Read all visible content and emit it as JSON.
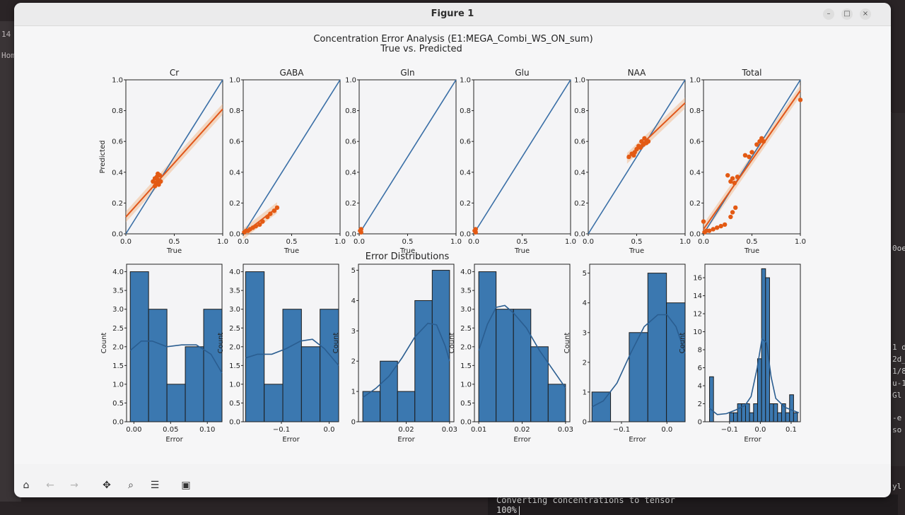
{
  "window": {
    "title": "Figure 1"
  },
  "background": {
    "left_terminal": [
      "14",
      "Hom"
    ],
    "right_terminal": [
      "0oe",
      "1 d",
      "2d_",
      "1/8",
      "u-1",
      "Gl",
      "-e",
      "so",
      "yl"
    ],
    "bottom_terminal": [
      "Converting concentrations to tensor",
      "100%|"
    ]
  },
  "toolbar": {
    "buttons": [
      {
        "name": "home-button",
        "icon": "home-icon",
        "glyph": "⌂",
        "enabled": true
      },
      {
        "name": "back-button",
        "icon": "arrow-left-icon",
        "glyph": "←",
        "enabled": false
      },
      {
        "name": "forward-button",
        "icon": "arrow-right-icon",
        "glyph": "→",
        "enabled": false
      },
      {
        "name": "pan-button",
        "icon": "move-icon",
        "glyph": "✥",
        "enabled": true
      },
      {
        "name": "zoom-button",
        "icon": "magnifier-icon",
        "glyph": "⌕",
        "enabled": true
      },
      {
        "name": "configure-subplots-button",
        "icon": "sliders-icon",
        "glyph": "☰",
        "enabled": true
      },
      {
        "name": "save-button",
        "icon": "floppy-disk-icon",
        "glyph": "▣",
        "enabled": true
      }
    ]
  },
  "colors": {
    "identity_line": "#3a6fa6",
    "scatter": "#e35a14",
    "fit": "#e0561a",
    "band": "#f2b27f",
    "bar": "#3b78b0",
    "bar_edge": "#1c1c1c",
    "kde": "#2a5d90"
  },
  "chart_data": {
    "suptitle": "Concentration Error Analysis (E1:MEGA_Combi_WS_ON_sum)",
    "subtitle": "True vs. Predicted",
    "hist_title": "Error Distributions",
    "scatter_panels": [
      {
        "title": "Cr",
        "type": "scatter",
        "xlabel": "True",
        "ylabel": "Predicted",
        "xlim": [
          0,
          1
        ],
        "ylim": [
          0,
          1
        ],
        "xticks": [
          "0.0",
          "0.5",
          "1.0"
        ],
        "yticks": [
          "0.0",
          "0.2",
          "0.4",
          "0.6",
          "0.8",
          "1.0"
        ],
        "points": [
          [
            0.28,
            0.34
          ],
          [
            0.3,
            0.36
          ],
          [
            0.31,
            0.33
          ],
          [
            0.32,
            0.37
          ],
          [
            0.33,
            0.35
          ],
          [
            0.34,
            0.32
          ],
          [
            0.35,
            0.38
          ],
          [
            0.36,
            0.34
          ],
          [
            0.3,
            0.31
          ],
          [
            0.33,
            0.39
          ]
        ],
        "fit": [
          [
            0,
            0.11
          ],
          [
            1,
            0.81
          ]
        ]
      },
      {
        "title": "GABA",
        "type": "scatter",
        "xlabel": "True",
        "ylabel": "",
        "xlim": [
          0,
          1
        ],
        "ylim": [
          0,
          1
        ],
        "xticks": [
          "0.0",
          "0.5",
          "1.0"
        ],
        "yticks": [
          "0.0",
          "0.2",
          "0.4",
          "0.6",
          "0.8",
          "1.0"
        ],
        "points": [
          [
            0.01,
            0.01
          ],
          [
            0.03,
            0.02
          ],
          [
            0.05,
            0.02
          ],
          [
            0.07,
            0.03
          ],
          [
            0.1,
            0.04
          ],
          [
            0.13,
            0.05
          ],
          [
            0.17,
            0.06
          ],
          [
            0.2,
            0.08
          ],
          [
            0.25,
            0.11
          ],
          [
            0.28,
            0.13
          ],
          [
            0.32,
            0.15
          ],
          [
            0.35,
            0.17
          ]
        ],
        "fit": [
          [
            0,
            0.0
          ],
          [
            0.35,
            0.17
          ]
        ]
      },
      {
        "title": "Gln",
        "type": "scatter",
        "xlabel": "True",
        "ylabel": "",
        "xlim": [
          0,
          1
        ],
        "ylim": [
          0,
          1
        ],
        "xticks": [
          "0.0",
          "0.5",
          "1.0"
        ],
        "yticks": [
          "0.0",
          "0.2",
          "0.4",
          "0.6",
          "0.8",
          "1.0"
        ],
        "points": [
          [
            0.01,
            0.02
          ],
          [
            0.02,
            0.01
          ],
          [
            0.02,
            0.03
          ]
        ],
        "fit": []
      },
      {
        "title": "Glu",
        "type": "scatter",
        "xlabel": "True",
        "ylabel": "",
        "xlim": [
          0,
          1
        ],
        "ylim": [
          0,
          1
        ],
        "xticks": [
          "0.0",
          "0.5",
          "1.0"
        ],
        "yticks": [
          "0.0",
          "0.2",
          "0.4",
          "0.6",
          "0.8",
          "1.0"
        ],
        "points": [
          [
            0.01,
            0.02
          ],
          [
            0.02,
            0.01
          ],
          [
            0.02,
            0.03
          ]
        ],
        "fit": []
      },
      {
        "title": "NAA",
        "type": "scatter",
        "xlabel": "True",
        "ylabel": "",
        "xlim": [
          0,
          1
        ],
        "ylim": [
          0,
          1
        ],
        "xticks": [
          "0.0",
          "0.5",
          "1.0"
        ],
        "yticks": [
          "0.0",
          "0.2",
          "0.4",
          "0.6",
          "0.8",
          "1.0"
        ],
        "points": [
          [
            0.42,
            0.5
          ],
          [
            0.45,
            0.52
          ],
          [
            0.48,
            0.53
          ],
          [
            0.5,
            0.55
          ],
          [
            0.52,
            0.57
          ],
          [
            0.54,
            0.56
          ],
          [
            0.55,
            0.6
          ],
          [
            0.57,
            0.58
          ],
          [
            0.58,
            0.62
          ],
          [
            0.6,
            0.59
          ],
          [
            0.62,
            0.6
          ],
          [
            0.47,
            0.51
          ]
        ],
        "fit": [
          [
            0.4,
            0.49
          ],
          [
            1,
            0.85
          ]
        ]
      },
      {
        "title": "Total",
        "type": "scatter",
        "xlabel": "True",
        "ylabel": "",
        "xlim": [
          0,
          1
        ],
        "ylim": [
          0,
          1
        ],
        "xticks": [
          "0.0",
          "0.5",
          "1.0"
        ],
        "yticks": [
          "0.0",
          "0.2",
          "0.4",
          "0.6",
          "0.8",
          "1.0"
        ],
        "points": [
          [
            0.01,
            0.01
          ],
          [
            0.03,
            0.02
          ],
          [
            0.06,
            0.02
          ],
          [
            0.1,
            0.03
          ],
          [
            0.14,
            0.04
          ],
          [
            0.18,
            0.05
          ],
          [
            0.22,
            0.06
          ],
          [
            0.28,
            0.11
          ],
          [
            0.3,
            0.14
          ],
          [
            0.33,
            0.17
          ],
          [
            0.25,
            0.38
          ],
          [
            0.28,
            0.34
          ],
          [
            0.3,
            0.36
          ],
          [
            0.32,
            0.33
          ],
          [
            0.35,
            0.37
          ],
          [
            0.43,
            0.51
          ],
          [
            0.47,
            0.5
          ],
          [
            0.5,
            0.53
          ],
          [
            0.55,
            0.58
          ],
          [
            0.58,
            0.6
          ],
          [
            0.6,
            0.62
          ],
          [
            0.62,
            0.6
          ],
          [
            0.0,
            0.08
          ],
          [
            1.0,
            0.87
          ]
        ],
        "fit": [
          [
            0,
            0.03
          ],
          [
            1,
            0.93
          ]
        ]
      }
    ],
    "hist_panels": [
      {
        "type": "bar",
        "xlabel": "Error",
        "ylabel": "Count",
        "xlim": [
          -0.01,
          0.12
        ],
        "ylim": [
          0,
          4.2
        ],
        "xticks": [
          {
            "v": 0.0,
            "l": "0.00"
          },
          {
            "v": 0.05,
            "l": "0.05"
          },
          {
            "v": 0.1,
            "l": "0.10"
          }
        ],
        "yticks": [
          "0.0",
          "0.5",
          "1.0",
          "1.5",
          "2.0",
          "2.5",
          "3.0",
          "3.5",
          "4.0"
        ],
        "bins": [
          [
            -0.005,
            0.02,
            4
          ],
          [
            0.02,
            0.045,
            3
          ],
          [
            0.045,
            0.07,
            1
          ],
          [
            0.07,
            0.095,
            2
          ],
          [
            0.095,
            0.12,
            3
          ]
        ],
        "kde": [
          [
            -0.005,
            1.9
          ],
          [
            0.01,
            2.15
          ],
          [
            0.025,
            2.15
          ],
          [
            0.045,
            2.0
          ],
          [
            0.065,
            2.05
          ],
          [
            0.085,
            2.05
          ],
          [
            0.105,
            1.8
          ],
          [
            0.12,
            1.3
          ]
        ]
      },
      {
        "type": "bar",
        "xlabel": "Error",
        "ylabel": "Count",
        "xlim": [
          -0.18,
          0.02
        ],
        "ylim": [
          0,
          4.2
        ],
        "xticks": [
          {
            "v": -0.1,
            "l": "−0.1"
          },
          {
            "v": 0.0,
            "l": "0.0"
          }
        ],
        "yticks": [
          "0.0",
          "0.5",
          "1.0",
          "1.5",
          "2.0",
          "2.5",
          "3.0",
          "3.5",
          "4.0"
        ],
        "bins": [
          [
            -0.175,
            -0.136,
            4
          ],
          [
            -0.136,
            -0.097,
            1
          ],
          [
            -0.097,
            -0.058,
            3
          ],
          [
            -0.058,
            -0.019,
            2
          ],
          [
            -0.019,
            0.02,
            3
          ]
        ],
        "kde": [
          [
            -0.175,
            1.7
          ],
          [
            -0.15,
            1.8
          ],
          [
            -0.12,
            1.8
          ],
          [
            -0.09,
            1.95
          ],
          [
            -0.06,
            2.15
          ],
          [
            -0.035,
            2.2
          ],
          [
            -0.01,
            1.95
          ],
          [
            0.02,
            1.5
          ]
        ]
      },
      {
        "type": "bar",
        "xlabel": "Error",
        "ylabel": "Count",
        "xlim": [
          0.009,
          0.031
        ],
        "ylim": [
          0,
          5.2
        ],
        "xticks": [
          {
            "v": 0.02,
            "l": "0.02"
          },
          {
            "v": 0.03,
            "l": "0.03"
          }
        ],
        "yticks": [
          "0",
          "1",
          "2",
          "3",
          "4",
          "5"
        ],
        "bins": [
          [
            0.01,
            0.014,
            1
          ],
          [
            0.014,
            0.018,
            2
          ],
          [
            0.018,
            0.022,
            1
          ],
          [
            0.022,
            0.026,
            4
          ],
          [
            0.026,
            0.03,
            5
          ]
        ],
        "kde": [
          [
            0.01,
            0.8
          ],
          [
            0.013,
            1.1
          ],
          [
            0.016,
            1.5
          ],
          [
            0.019,
            2.1
          ],
          [
            0.022,
            2.8
          ],
          [
            0.025,
            3.25
          ],
          [
            0.027,
            3.2
          ],
          [
            0.029,
            2.5
          ],
          [
            0.03,
            2.0
          ]
        ]
      },
      {
        "type": "bar",
        "xlabel": "Error",
        "ylabel": "Count",
        "xlim": [
          0.009,
          0.031
        ],
        "ylim": [
          0,
          4.2
        ],
        "xticks": [
          {
            "v": 0.01,
            "l": "0.01"
          },
          {
            "v": 0.02,
            "l": "0.02"
          },
          {
            "v": 0.03,
            "l": "0.03"
          }
        ],
        "yticks": [
          "0.0",
          "0.5",
          "1.0",
          "1.5",
          "2.0",
          "2.5",
          "3.0",
          "3.5",
          "4.0"
        ],
        "bins": [
          [
            0.01,
            0.014,
            4
          ],
          [
            0.014,
            0.018,
            3
          ],
          [
            0.018,
            0.022,
            3
          ],
          [
            0.022,
            0.026,
            2
          ],
          [
            0.026,
            0.03,
            1
          ]
        ],
        "kde": [
          [
            0.01,
            1.9
          ],
          [
            0.012,
            2.6
          ],
          [
            0.014,
            3.05
          ],
          [
            0.016,
            3.1
          ],
          [
            0.018,
            2.9
          ],
          [
            0.021,
            2.5
          ],
          [
            0.024,
            1.9
          ],
          [
            0.027,
            1.4
          ],
          [
            0.03,
            0.9
          ]
        ]
      },
      {
        "type": "bar",
        "xlabel": "Error",
        "ylabel": "Count",
        "xlim": [
          -0.17,
          0.04
        ],
        "ylim": [
          0,
          5.3
        ],
        "xticks": [
          {
            "v": -0.1,
            "l": "−0.1"
          },
          {
            "v": 0.0,
            "l": "0.0"
          }
        ],
        "yticks": [
          "0",
          "1",
          "2",
          "3",
          "4",
          "5"
        ],
        "bins": [
          [
            -0.165,
            -0.124,
            1
          ],
          [
            -0.124,
            -0.083,
            0
          ],
          [
            -0.083,
            -0.042,
            3
          ],
          [
            -0.042,
            -0.001,
            5
          ],
          [
            -0.001,
            0.04,
            4
          ]
        ],
        "kde": [
          [
            -0.165,
            0.5
          ],
          [
            -0.14,
            0.7
          ],
          [
            -0.11,
            1.3
          ],
          [
            -0.08,
            2.3
          ],
          [
            -0.05,
            3.2
          ],
          [
            -0.02,
            3.6
          ],
          [
            0.0,
            3.6
          ],
          [
            0.02,
            3.2
          ],
          [
            0.04,
            2.3
          ]
        ]
      },
      {
        "type": "bar",
        "xlabel": "Error",
        "ylabel": "Count",
        "xlim": [
          -0.18,
          0.13
        ],
        "ylim": [
          0,
          17.5
        ],
        "xticks": [
          {
            "v": -0.1,
            "l": "−0.1"
          },
          {
            "v": 0.0,
            "l": "0.0"
          },
          {
            "v": 0.1,
            "l": "0.1"
          }
        ],
        "yticks": [
          "0",
          "2",
          "4",
          "6",
          "8",
          "10",
          "12",
          "14",
          "16"
        ],
        "bins": [
          [
            -0.165,
            -0.152,
            5
          ],
          [
            -0.152,
            -0.139,
            0
          ],
          [
            -0.139,
            -0.126,
            0
          ],
          [
            -0.126,
            -0.113,
            0
          ],
          [
            -0.113,
            -0.1,
            0
          ],
          [
            -0.1,
            -0.087,
            1
          ],
          [
            -0.087,
            -0.074,
            1
          ],
          [
            -0.074,
            -0.061,
            2
          ],
          [
            -0.061,
            -0.048,
            2
          ],
          [
            -0.048,
            -0.035,
            2
          ],
          [
            -0.035,
            -0.022,
            1
          ],
          [
            -0.022,
            -0.009,
            2
          ],
          [
            -0.009,
            0.004,
            7
          ],
          [
            0.004,
            0.017,
            17
          ],
          [
            0.017,
            0.03,
            16
          ],
          [
            0.03,
            0.043,
            2
          ],
          [
            0.043,
            0.056,
            2
          ],
          [
            0.056,
            0.069,
            1
          ],
          [
            0.069,
            0.082,
            2
          ],
          [
            0.082,
            0.095,
            1
          ],
          [
            0.095,
            0.108,
            3
          ],
          [
            0.108,
            0.121,
            1
          ]
        ],
        "kde": [
          [
            -0.165,
            1.5
          ],
          [
            -0.14,
            0.8
          ],
          [
            -0.11,
            0.9
          ],
          [
            -0.08,
            1.3
          ],
          [
            -0.05,
            1.8
          ],
          [
            -0.03,
            2.8
          ],
          [
            -0.01,
            6
          ],
          [
            0.005,
            9.2
          ],
          [
            0.02,
            8.8
          ],
          [
            0.035,
            5
          ],
          [
            0.05,
            2.6
          ],
          [
            0.08,
            1.6
          ],
          [
            0.11,
            1.2
          ],
          [
            0.125,
            1.0
          ]
        ]
      }
    ]
  }
}
